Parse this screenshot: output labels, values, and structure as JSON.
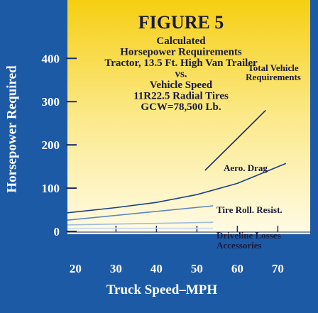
{
  "chart_data": {
    "type": "line",
    "title": "FIGURE 5",
    "subtitle": [
      "Calculated",
      "Horsepower Requirements",
      "Tractor, 13.5 Ft. High Van Trailer",
      "vs.",
      "Vehicle Speed",
      "11R22.5 Radial Tires",
      "GCW=78,500 Lb."
    ],
    "x_label": "Truck Speed–MPH",
    "y_label": "Horsepower Required",
    "xlim": [
      18,
      78
    ],
    "ylim": [
      0,
      535
    ],
    "xticks": [
      20,
      30,
      40,
      50,
      60,
      70
    ],
    "yticks": [
      0,
      100,
      200,
      300,
      400
    ],
    "series": [
      {
        "name": "Total Vehicle Requirements",
        "color": "#1b2a6b",
        "x": [
          52,
          60,
          67
        ],
        "values": [
          141,
          215,
          280
        ]
      },
      {
        "name": "Aero. Drag",
        "color": "#1b3f8a",
        "x": [
          18,
          30,
          40,
          50,
          60,
          72
        ],
        "values": [
          43,
          55,
          67,
          85,
          111,
          157
        ]
      },
      {
        "name": "Tire Roll. Resist.",
        "color": "#5a86c4",
        "x": [
          18,
          54
        ],
        "values": [
          26,
          59
        ]
      },
      {
        "name": "Driveline Losses",
        "color": "#9fbbe0",
        "x": [
          18,
          54
        ],
        "values": [
          15,
          21
        ]
      },
      {
        "name": "Accessories",
        "color": "#c9d8ee",
        "x": [
          18,
          54
        ],
        "values": [
          7,
          7
        ]
      }
    ]
  }
}
